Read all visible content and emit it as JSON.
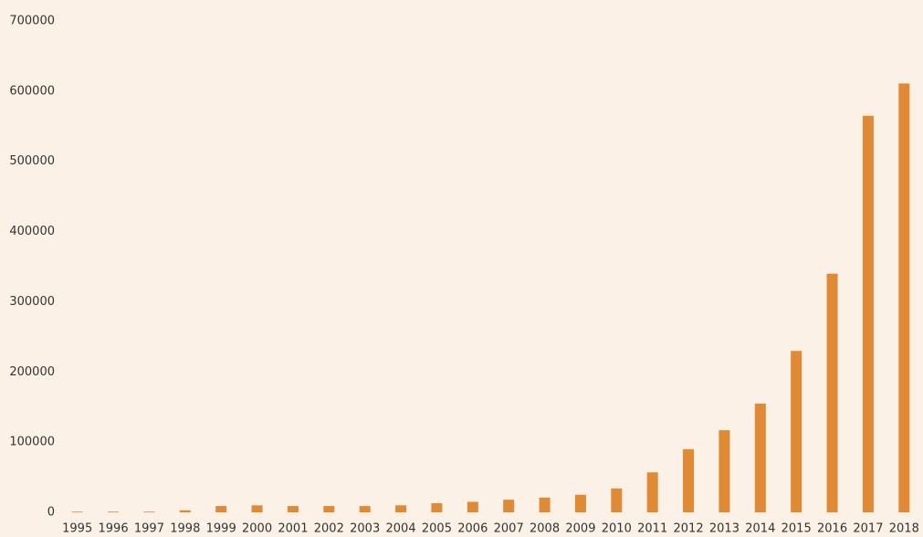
{
  "chart_data": {
    "type": "bar",
    "categories": [
      "1995",
      "1996",
      "1997",
      "1998",
      "1999",
      "2000",
      "2001",
      "2002",
      "2003",
      "2004",
      "2005",
      "2006",
      "2007",
      "2008",
      "2009",
      "2010",
      "2011",
      "2012",
      "2013",
      "2014",
      "2015",
      "2016",
      "2017",
      "2018"
    ],
    "values": [
      1000,
      1000,
      1000,
      3000,
      9000,
      10000,
      9000,
      9000,
      9000,
      10000,
      13000,
      15000,
      18000,
      21000,
      25000,
      34000,
      57000,
      90000,
      117000,
      155000,
      230000,
      340000,
      565000,
      611000
    ],
    "color": "#e08a36",
    "ylim": [
      0,
      700000
    ],
    "yticks": [
      0,
      100000,
      200000,
      300000,
      400000,
      500000,
      600000,
      700000
    ],
    "grid": false
  }
}
